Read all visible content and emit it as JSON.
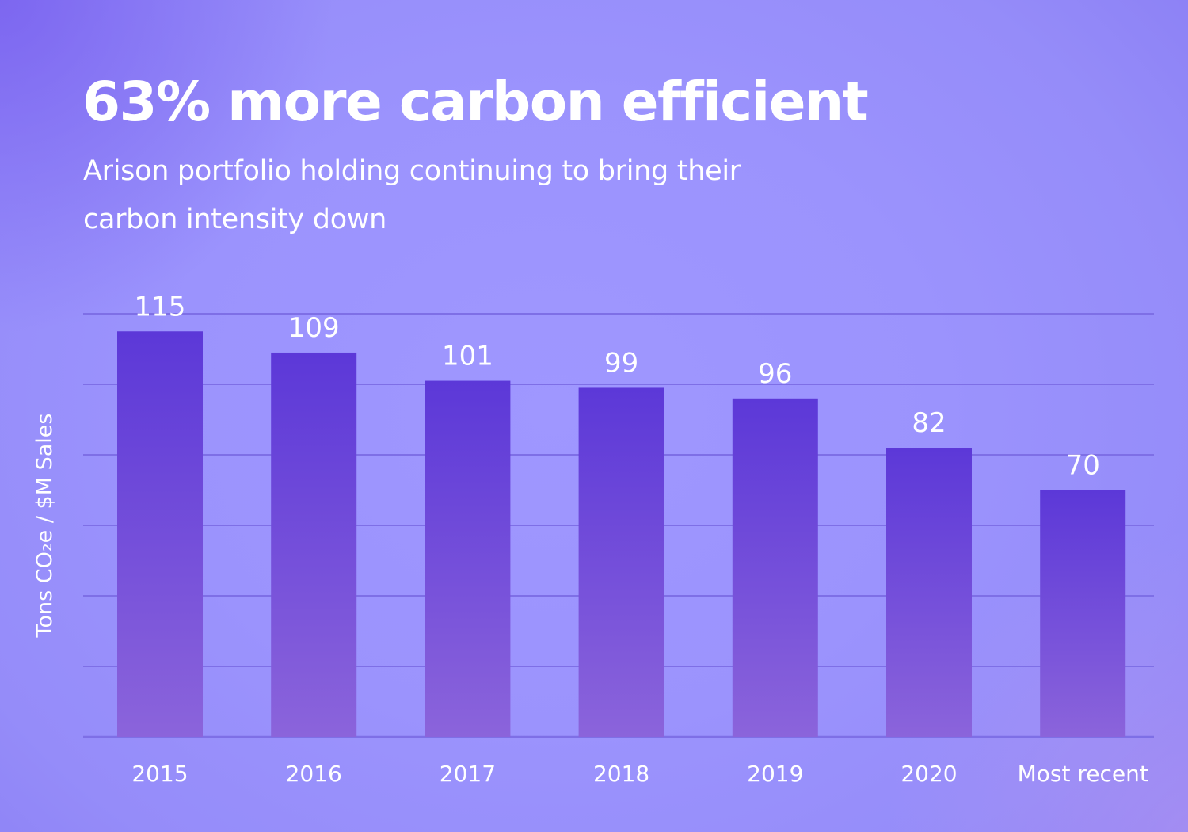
{
  "header": {
    "title": "63% more carbon efficient",
    "subtitle": "Arison portfolio holding continuing to bring their carbon intensity down"
  },
  "colors": {
    "bar_top": "#5c38d8",
    "bar_bottom": "#8b64db",
    "gridline": "#7e6fe6",
    "text": "#ffffff"
  },
  "chart_data": {
    "type": "bar",
    "title": "63% more carbon efficient",
    "subtitle": "Arison portfolio holding continuing to bring their carbon intensity down",
    "xlabel": "",
    "ylabel": "Tons CO₂e / $M Sales",
    "categories": [
      "2015",
      "2016",
      "2017",
      "2018",
      "2019",
      "2020",
      "Most recent"
    ],
    "values": [
      115,
      109,
      101,
      99,
      96,
      82,
      70
    ],
    "data_labels": [
      "115",
      "109",
      "101",
      "99",
      "96",
      "82",
      "70"
    ],
    "ylim": [
      0,
      120
    ],
    "grid": true,
    "legend": "none"
  }
}
